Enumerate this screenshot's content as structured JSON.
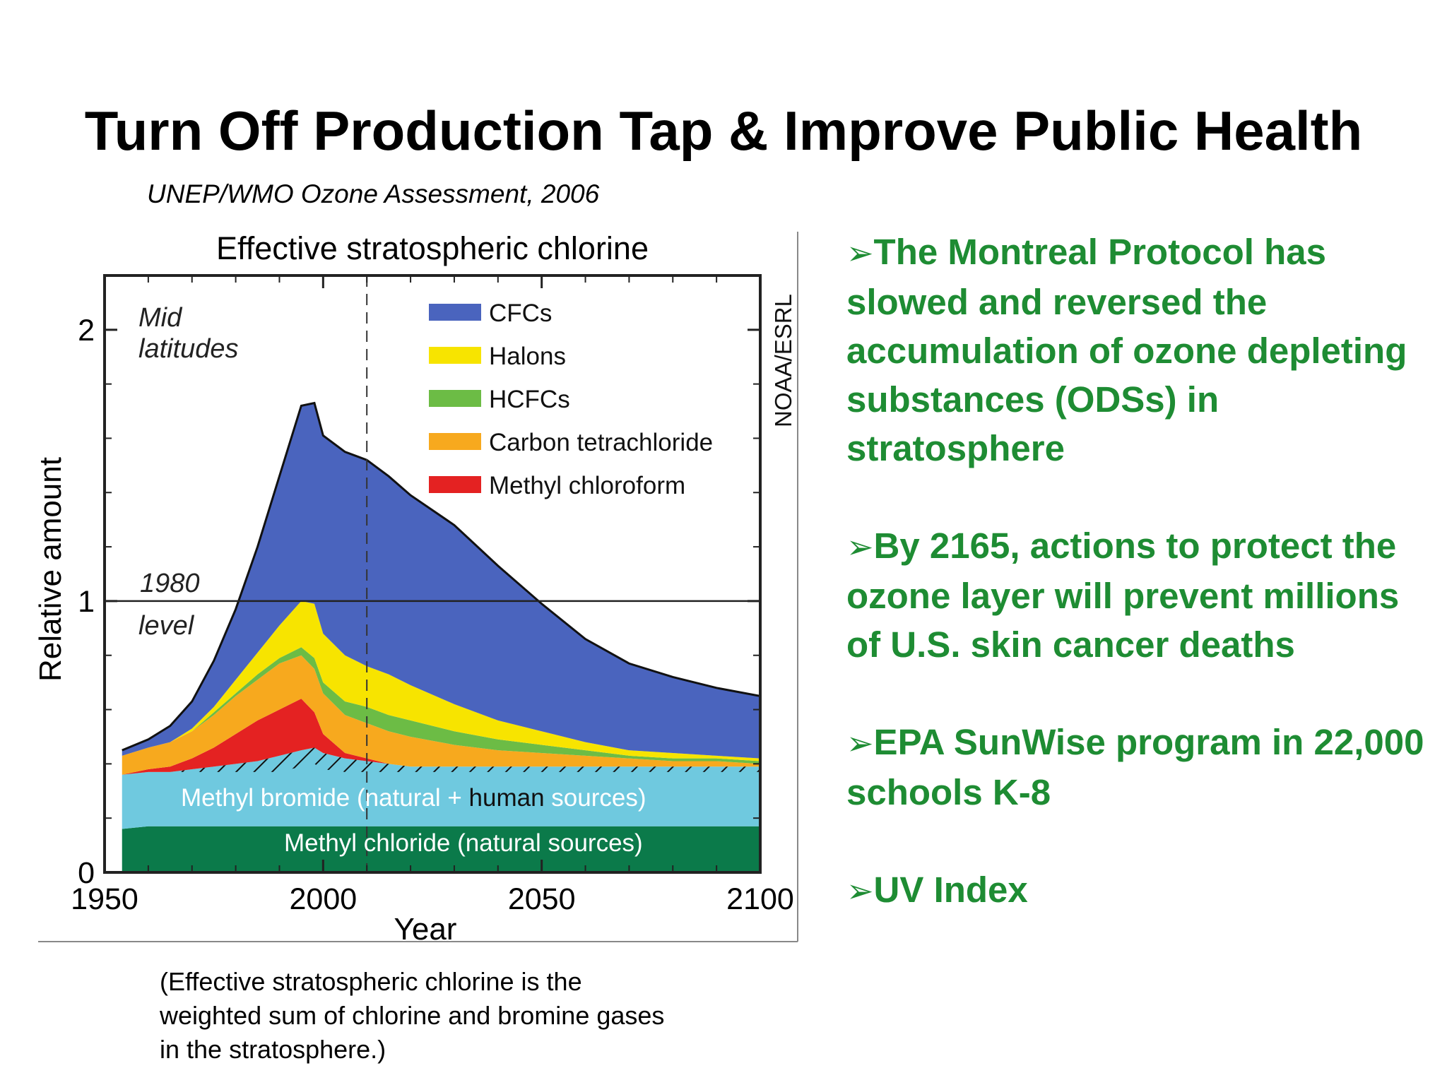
{
  "slide": {
    "title": "Turn Off Production Tap & Improve Public Health",
    "citation": "UNEP/WMO Ozone Assessment, 2006",
    "caption": "(Effective stratospheric chlorine is the weighted sum of chlorine and bromine gases in the stratosphere.)"
  },
  "bullets": [
    {
      "arrow": "➢",
      "text": "The Montreal Protocol has slowed and reversed the accumulation of ozone depleting substances (ODSs) in  stratosphere"
    },
    {
      "arrow": "➢",
      "text": "By 2165, actions to protect the ozone layer will prevent millions of U.S. skin cancer deaths"
    },
    {
      "arrow": "➢",
      "text": "EPA SunWise program in 22,000 schools K-8"
    },
    {
      "arrow": "➢",
      "text": "UV Index"
    }
  ],
  "colors": {
    "bullet_text": "#1e8c33",
    "CFCs": "#4a64be",
    "Halons": "#f7e400",
    "HCFCs": "#6cbc45",
    "Carbon tetrachloride": "#f7a91e",
    "Methyl chloroform": "#e42222",
    "Methyl bromide": "#6fc9df",
    "Methyl chloride": "#0b7a4a"
  },
  "chart_data": {
    "type": "area",
    "stacked": true,
    "title": "Effective stratospheric chlorine",
    "xlabel": "Year",
    "ylabel": "Relative amount",
    "xlim": [
      1950,
      2100
    ],
    "ylim": [
      0,
      2.2
    ],
    "xticks": [
      1950,
      2000,
      2050,
      2100
    ],
    "yticks": [
      0,
      1,
      2
    ],
    "credit": "NOAA/ESRL",
    "region_label_line1": "Mid",
    "region_label_line2": "latitudes",
    "reference_line": {
      "y": 1.0,
      "label_line1": "1980",
      "label_line2": "level"
    },
    "marker_year": 2010,
    "legend_position": "top-right",
    "x": [
      1954,
      1960,
      1965,
      1970,
      1975,
      1980,
      1985,
      1990,
      1995,
      1998,
      2000,
      2005,
      2010,
      2015,
      2020,
      2030,
      2040,
      2050,
      2060,
      2070,
      2080,
      2090,
      2100
    ],
    "series": [
      {
        "name": "Methyl chloride",
        "note": "(natural sources)",
        "values": [
          0.16,
          0.17,
          0.17,
          0.17,
          0.17,
          0.17,
          0.17,
          0.17,
          0.17,
          0.17,
          0.17,
          0.17,
          0.17,
          0.17,
          0.17,
          0.17,
          0.17,
          0.17,
          0.17,
          0.17,
          0.17,
          0.17,
          0.17
        ]
      },
      {
        "name": "Methyl bromide",
        "note_parts": [
          "(natural + ",
          "human",
          " sources)"
        ],
        "values": [
          0.2,
          0.2,
          0.2,
          0.21,
          0.22,
          0.23,
          0.24,
          0.26,
          0.28,
          0.29,
          0.27,
          0.25,
          0.24,
          0.23,
          0.22,
          0.22,
          0.22,
          0.22,
          0.22,
          0.22,
          0.22,
          0.22,
          0.22
        ]
      },
      {
        "name": "Methyl chloroform",
        "values": [
          0.0,
          0.01,
          0.02,
          0.04,
          0.07,
          0.11,
          0.15,
          0.17,
          0.19,
          0.13,
          0.07,
          0.02,
          0.01,
          0.0,
          0.0,
          0.0,
          0.0,
          0.0,
          0.0,
          0.0,
          0.0,
          0.0,
          0.0
        ]
      },
      {
        "name": "Carbon tetrachloride",
        "values": [
          0.07,
          0.08,
          0.09,
          0.1,
          0.12,
          0.14,
          0.15,
          0.17,
          0.16,
          0.16,
          0.15,
          0.14,
          0.13,
          0.12,
          0.11,
          0.08,
          0.06,
          0.05,
          0.04,
          0.03,
          0.02,
          0.02,
          0.01
        ]
      },
      {
        "name": "HCFCs",
        "values": [
          0.0,
          0.0,
          0.0,
          0.0,
          0.01,
          0.01,
          0.02,
          0.02,
          0.03,
          0.04,
          0.04,
          0.05,
          0.06,
          0.06,
          0.06,
          0.05,
          0.04,
          0.03,
          0.02,
          0.01,
          0.01,
          0.01,
          0.01
        ]
      },
      {
        "name": "Halons",
        "values": [
          0.0,
          0.0,
          0.0,
          0.01,
          0.02,
          0.05,
          0.08,
          0.12,
          0.17,
          0.2,
          0.18,
          0.17,
          0.15,
          0.15,
          0.13,
          0.1,
          0.07,
          0.05,
          0.03,
          0.02,
          0.02,
          0.01,
          0.01
        ]
      },
      {
        "name": "CFCs",
        "values": [
          0.02,
          0.03,
          0.06,
          0.1,
          0.17,
          0.26,
          0.39,
          0.55,
          0.72,
          0.74,
          0.73,
          0.75,
          0.76,
          0.73,
          0.7,
          0.66,
          0.57,
          0.47,
          0.38,
          0.32,
          0.28,
          0.25,
          0.23
        ]
      }
    ],
    "legend": [
      "CFCs",
      "Halons",
      "HCFCs",
      "Carbon tetrachloride",
      "Methyl chloroform"
    ]
  }
}
